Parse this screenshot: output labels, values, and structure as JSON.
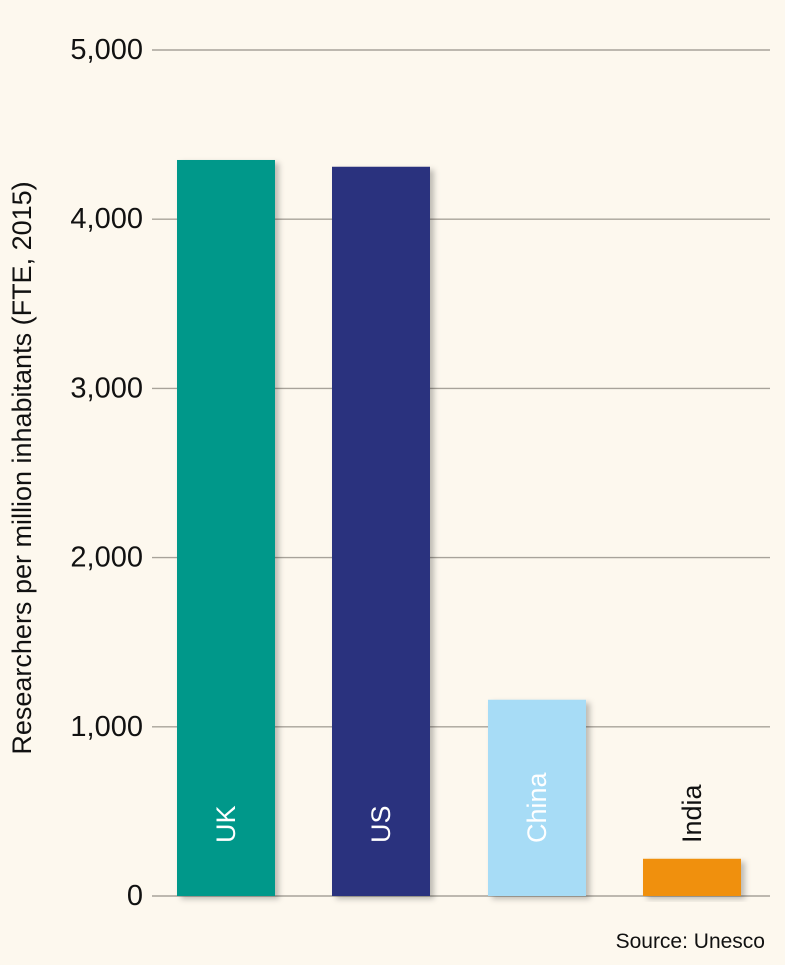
{
  "chart_data": {
    "type": "bar",
    "categories": [
      "UK",
      "US",
      "China",
      "India"
    ],
    "values": [
      4350,
      4310,
      1160,
      220
    ],
    "ylabel": "Researchers per million inhabitants (FTE, 2015)",
    "xlabel": "",
    "ylim": [
      0,
      5000
    ],
    "yticks": [
      0,
      1000,
      2000,
      3000,
      4000,
      5000
    ],
    "ytick_labels": [
      "0",
      "1,000",
      "2,000",
      "3,000",
      "4,000",
      "5,000"
    ],
    "bar_colors": [
      "#00988a",
      "#29337e",
      "#a7dcf6",
      "#f0900f"
    ],
    "bar_label_colors": [
      "#ffffff",
      "#ffffff",
      "#ffffff",
      "#111111"
    ],
    "grid": true,
    "legend": "none",
    "source": "Source: Unesco"
  },
  "colors": {
    "background": "#fdf8ee",
    "gridline": "#a8a39a",
    "text": "#111111"
  }
}
